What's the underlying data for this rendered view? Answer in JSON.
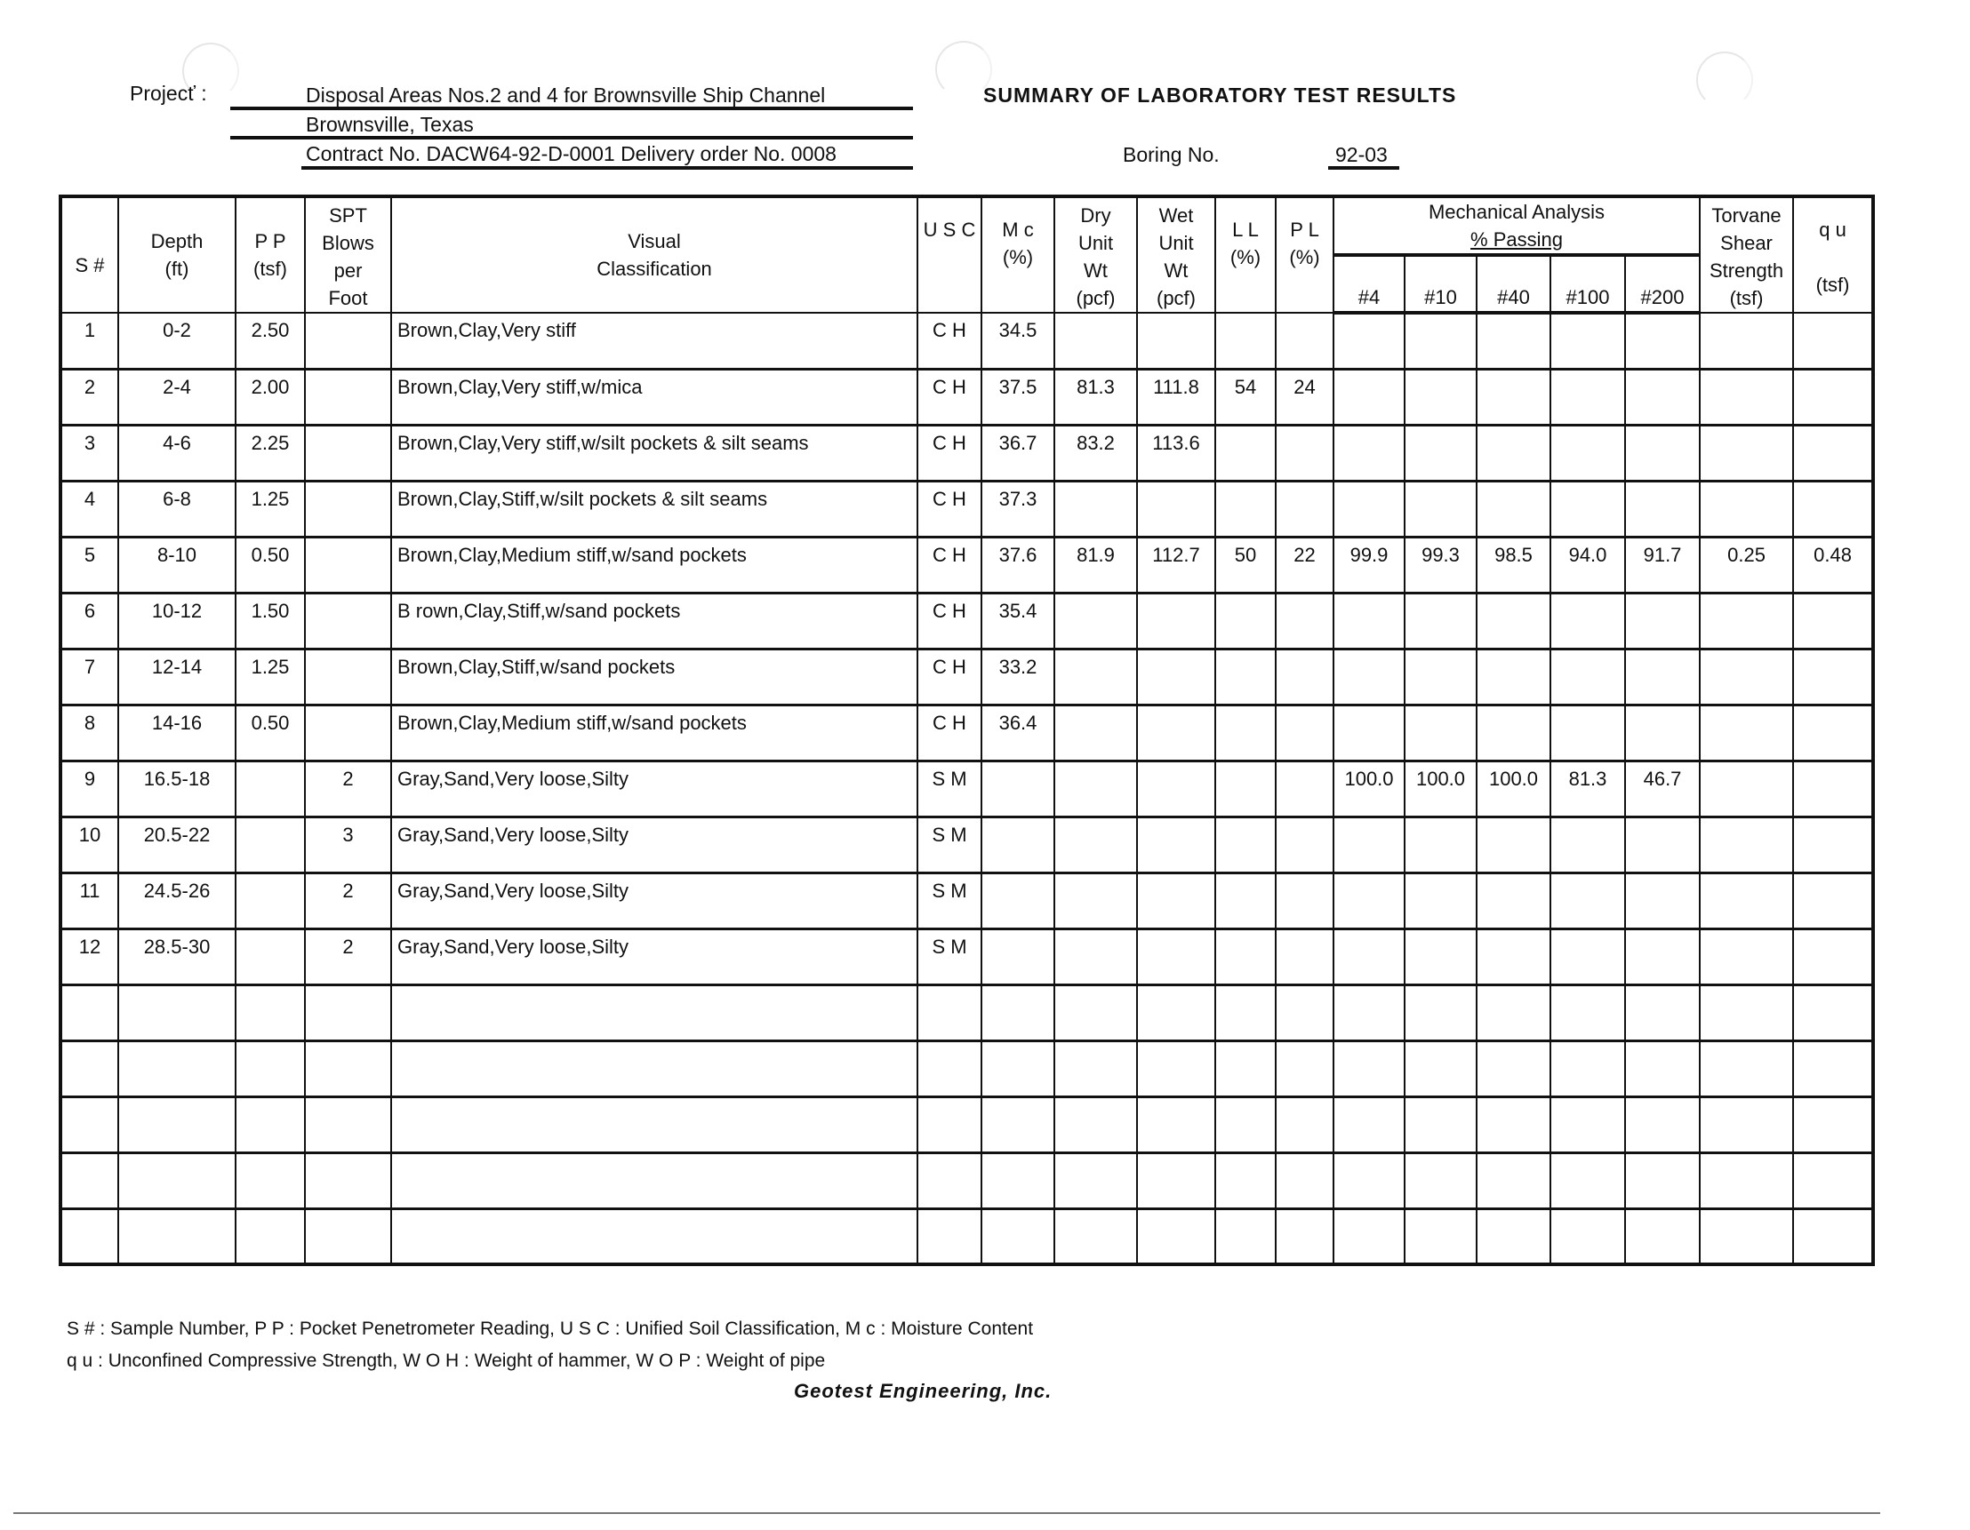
{
  "header": {
    "project_label": "Projecť :",
    "project_line1": "Disposal Areas Nos.2 and 4 for Brownsville Ship Channel",
    "project_line2": "Brownsville,  Texas",
    "project_line3": "Contract No. DACW64-92-D-0001   Delivery order No. 0008",
    "title": "SUMMARY  OF  LABORATORY  TEST  RESULTS",
    "boring_label": "Boring No.",
    "boring_value": "92-03"
  },
  "table": {
    "columns": {
      "sample": "S #",
      "depth": [
        "Depth",
        "(ft)"
      ],
      "pp": [
        "P P",
        "(tsf)"
      ],
      "spt": [
        "SPT",
        "Blows",
        "per",
        "Foot"
      ],
      "visual": [
        "Visual",
        "Classification"
      ],
      "usc": "U S C",
      "mc": [
        "M c",
        "(%)"
      ],
      "dry": [
        "Dry",
        "Unit",
        "Wt",
        "(pcf)"
      ],
      "wet": [
        "Wet",
        "Unit",
        "Wt",
        "(pcf)"
      ],
      "ll": [
        "L L",
        "(%)"
      ],
      "pl": [
        "P L",
        "(%)"
      ],
      "mech": [
        "Mechanical Analysis",
        "% Passing"
      ],
      "sieves": [
        "#4",
        "#10",
        "#40",
        "#100",
        "#200"
      ],
      "torvane": [
        "Torvane",
        "Shear",
        "Strength",
        "(tsf)"
      ],
      "qu": [
        "q u",
        "(tsf)"
      ]
    },
    "rows": [
      [
        "1",
        "0-2",
        "2.50",
        "",
        "Brown,Clay,Very  stiff",
        "C H",
        "34.5",
        "",
        "",
        "",
        "",
        "",
        "",
        "",
        "",
        "",
        "",
        ""
      ],
      [
        "2",
        "2-4",
        "2.00",
        "",
        "Brown,Clay,Very  stiff,w/mica",
        "C H",
        "37.5",
        "81.3",
        "111.8",
        "54",
        "24",
        "",
        "",
        "",
        "",
        "",
        "",
        ""
      ],
      [
        "3",
        "4-6",
        "2.25",
        "",
        "Brown,Clay,Very stiff,w/silt pockets & silt seams",
        "C H",
        "36.7",
        "83.2",
        "113.6",
        "",
        "",
        "",
        "",
        "",
        "",
        "",
        "",
        ""
      ],
      [
        "4",
        "6-8",
        "1.25",
        "",
        "Brown,Clay,Stiff,w/silt pockets & silt seams",
        "C H",
        "37.3",
        "",
        "",
        "",
        "",
        "",
        "",
        "",
        "",
        "",
        "",
        ""
      ],
      [
        "5",
        "8-10",
        "0.50",
        "",
        "Brown,Clay,Medium  stiff,w/sand  pockets",
        "C H",
        "37.6",
        "81.9",
        "112.7",
        "50",
        "22",
        "99.9",
        "99.3",
        "98.5",
        "94.0",
        "91.7",
        "0.25",
        "0.48"
      ],
      [
        "6",
        "10-12",
        "1.50",
        "",
        "B rown,Clay,Stiff,w/sand  pockets",
        "C H",
        "35.4",
        "",
        "",
        "",
        "",
        "",
        "",
        "",
        "",
        "",
        "",
        ""
      ],
      [
        "7",
        "12-14",
        "1.25",
        "",
        "Brown,Clay,Stiff,w/sand  pockets",
        "C H",
        "33.2",
        "",
        "",
        "",
        "",
        "",
        "",
        "",
        "",
        "",
        "",
        ""
      ],
      [
        "8",
        "14-16",
        "0.50",
        "",
        "Brown,Clay,Medium  stiff,w/sand  pockets",
        "C H",
        "36.4",
        "",
        "",
        "",
        "",
        "",
        "",
        "",
        "",
        "",
        "",
        ""
      ],
      [
        "9",
        "16.5-18",
        "",
        "2",
        "Gray,Sand,Very  loose,Silty",
        "S M",
        "",
        "",
        "",
        "",
        "",
        "100.0",
        "100.0",
        "100.0",
        "81.3",
        "46.7",
        "",
        ""
      ],
      [
        "10",
        "20.5-22",
        "",
        "3",
        "Gray,Sand,Very  loose,Silty",
        "S M",
        "",
        "",
        "",
        "",
        "",
        "",
        "",
        "",
        "",
        "",
        "",
        ""
      ],
      [
        "11",
        "24.5-26",
        "",
        "2",
        "Gray,Sand,Very  loose,Silty",
        "S M",
        "",
        "",
        "",
        "",
        "",
        "",
        "",
        "",
        "",
        "",
        "",
        ""
      ],
      [
        "12",
        "28.5-30",
        "",
        "2",
        "Gray,Sand,Very  loose,Silty",
        "S M",
        "",
        "",
        "",
        "",
        "",
        "",
        "",
        "",
        "",
        "",
        "",
        ""
      ],
      [
        "",
        "",
        "",
        "",
        "",
        "",
        "",
        "",
        "",
        "",
        "",
        "",
        "",
        "",
        "",
        "",
        "",
        ""
      ],
      [
        "",
        "",
        "",
        "",
        "",
        "",
        "",
        "",
        "",
        "",
        "",
        "",
        "",
        "",
        "",
        "",
        "",
        ""
      ],
      [
        "",
        "",
        "",
        "",
        "",
        "",
        "",
        "",
        "",
        "",
        "",
        "",
        "",
        "",
        "",
        "",
        "",
        ""
      ],
      [
        "",
        "",
        "",
        "",
        "",
        "",
        "",
        "",
        "",
        "",
        "",
        "",
        "",
        "",
        "",
        "",
        "",
        ""
      ],
      [
        "",
        "",
        "",
        "",
        "",
        "",
        "",
        "",
        "",
        "",
        "",
        "",
        "",
        "",
        "",
        "",
        "",
        ""
      ]
    ]
  },
  "footer": {
    "legend1": "S # : Sample Number, P P : Pocket Penetrometer Reading, U S C : Unified Soil Classification, M c : Moisture Content",
    "legend2": "q u : Unconfined Compressive Strength, W O H : Weight of hammer, W O P : Weight of pipe",
    "company": "Geotest  Engineering,  Inc."
  }
}
